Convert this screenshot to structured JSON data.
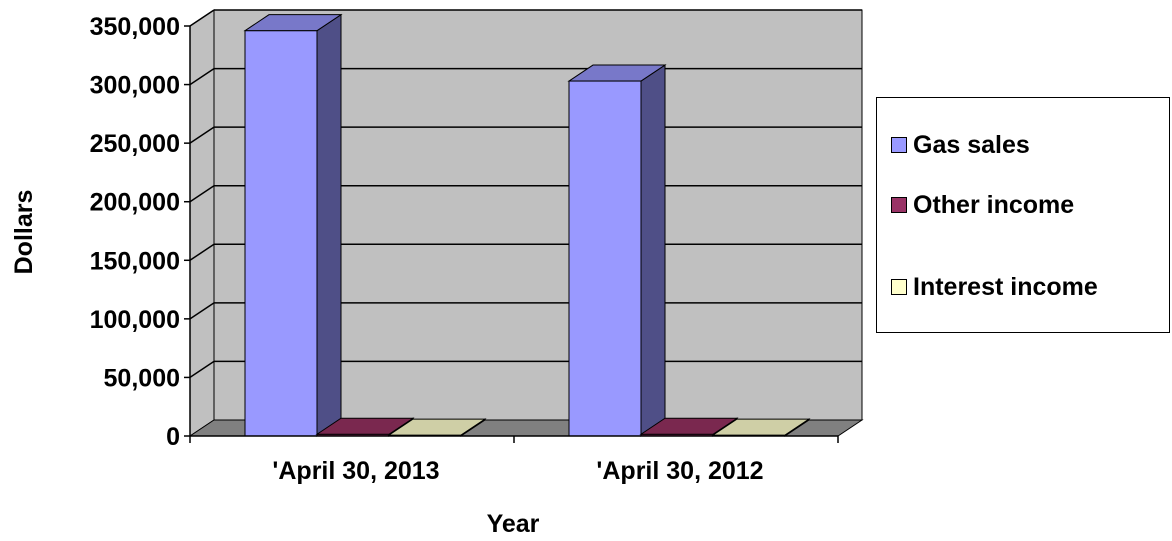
{
  "chart_data": {
    "type": "bar",
    "style": "3d-clustered-column",
    "title": "",
    "xlabel": "Year",
    "ylabel": "Dollars",
    "categories": [
      "'April 30, 2013",
      "'April 30, 2012"
    ],
    "series": [
      {
        "name": "Gas sales",
        "values": [
          346000,
          303000
        ],
        "color": "#9999FF",
        "side_color": "#4F4F87",
        "top_color": "#7878C9"
      },
      {
        "name": "Other income",
        "values": [
          1500,
          1500
        ],
        "color": "#993366",
        "side_color": "#5A1E3C",
        "top_color": "#7A284F"
      },
      {
        "name": "Interest income",
        "values": [
          800,
          800
        ],
        "color": "#FFFFCC",
        "side_color": "#ABAB8C",
        "top_color": "#CFCFA6"
      }
    ],
    "ylim": [
      0,
      350000
    ],
    "yticks": [
      "0",
      "50,000",
      "100,000",
      "150,000",
      "200,000",
      "250,000",
      "300,000",
      "350,000"
    ],
    "grid": true,
    "legend_position": "right",
    "wall_color": "#C0C0C0",
    "floor_color": "#808080"
  }
}
